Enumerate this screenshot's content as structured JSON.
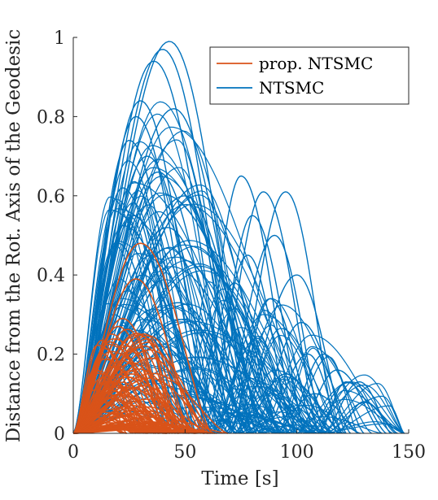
{
  "chart_data": {
    "type": "line",
    "xlabel": "Time [s]",
    "ylabel": "Distance from the Rot. Axis of the Geodesic",
    "xlim": [
      0,
      150
    ],
    "ylim": [
      0,
      1
    ],
    "xticks": [
      0,
      50,
      100,
      150
    ],
    "yticks": [
      0,
      0.2,
      0.4,
      0.6,
      0.8,
      1
    ],
    "xtick_labels": [
      "0",
      "50",
      "100",
      "150"
    ],
    "ytick_labels": [
      "0",
      "0.2",
      "0.4",
      "0.6",
      "0.8",
      "1"
    ],
    "grid": false,
    "legend_position": "top-right",
    "series": [
      {
        "name": "prop. NTSMC",
        "color": "#D95319",
        "description": "many trajectories; each a smooth bump starting at t≈0",
        "representative_peaks": [
          {
            "t": 30,
            "y": 0.48,
            "end": 62
          },
          {
            "t": 28,
            "y": 0.39,
            "end": 55
          },
          {
            "t": 22,
            "y": 0.29,
            "end": 45
          },
          {
            "t": 20,
            "y": 0.27,
            "end": 42
          },
          {
            "t": 24,
            "y": 0.22,
            "end": 48
          },
          {
            "t": 35,
            "y": 0.19,
            "end": 60
          },
          {
            "t": 18,
            "y": 0.17,
            "end": 38
          },
          {
            "t": 26,
            "y": 0.15,
            "end": 50
          },
          {
            "t": 16,
            "y": 0.13,
            "end": 35
          },
          {
            "t": 32,
            "y": 0.12,
            "end": 55
          },
          {
            "t": 21,
            "y": 0.1,
            "end": 44
          },
          {
            "t": 14,
            "y": 0.08,
            "end": 30
          },
          {
            "t": 27,
            "y": 0.07,
            "end": 46
          },
          {
            "t": 19,
            "y": 0.05,
            "end": 36
          },
          {
            "t": 12,
            "y": 0.04,
            "end": 28
          },
          {
            "t": 25,
            "y": 0.03,
            "end": 40
          },
          {
            "t": 10,
            "y": 0.02,
            "end": 24
          }
        ]
      },
      {
        "name": "NTSMC",
        "color": "#0072BD",
        "description": "many trajectories; first bump peaking between t≈20 and t≈50, some with second bumps later",
        "representative_peaks": [
          {
            "t": 43,
            "y": 0.99,
            "end": 80
          },
          {
            "t": 40,
            "y": 0.97,
            "end": 76
          },
          {
            "t": 36,
            "y": 0.94,
            "end": 72
          },
          {
            "t": 30,
            "y": 0.84,
            "end": 62
          },
          {
            "t": 28,
            "y": 0.8,
            "end": 60
          },
          {
            "t": 45,
            "y": 0.82,
            "end": 82
          },
          {
            "t": 25,
            "y": 0.74,
            "end": 55
          },
          {
            "t": 33,
            "y": 0.7,
            "end": 66
          },
          {
            "t": 38,
            "y": 0.66,
            "end": 72
          },
          {
            "t": 22,
            "y": 0.62,
            "end": 52
          },
          {
            "t": 50,
            "y": 0.6,
            "end": 86
          },
          {
            "t": 27,
            "y": 0.55,
            "end": 58
          },
          {
            "t": 42,
            "y": 0.52,
            "end": 78
          },
          {
            "t": 20,
            "y": 0.48,
            "end": 46
          },
          {
            "t": 35,
            "y": 0.45,
            "end": 68
          },
          {
            "t": 31,
            "y": 0.4,
            "end": 62
          },
          {
            "t": 24,
            "y": 0.36,
            "end": 54
          },
          {
            "t": 47,
            "y": 0.33,
            "end": 84
          },
          {
            "t": 18,
            "y": 0.3,
            "end": 42
          },
          {
            "t": 29,
            "y": 0.26,
            "end": 60
          },
          {
            "t": 39,
            "y": 0.22,
            "end": 70
          },
          {
            "t": 21,
            "y": 0.18,
            "end": 48
          }
        ],
        "second_bumps": [
          {
            "start": 55,
            "t": 75,
            "y": 0.65,
            "end": 100
          },
          {
            "start": 62,
            "t": 85,
            "y": 0.61,
            "end": 110
          },
          {
            "start": 70,
            "t": 95,
            "y": 0.61,
            "end": 118
          },
          {
            "start": 60,
            "t": 80,
            "y": 0.55,
            "end": 104
          },
          {
            "start": 65,
            "t": 90,
            "y": 0.5,
            "end": 112
          },
          {
            "start": 58,
            "t": 78,
            "y": 0.45,
            "end": 98
          },
          {
            "start": 72,
            "t": 100,
            "y": 0.4,
            "end": 122
          },
          {
            "start": 55,
            "t": 72,
            "y": 0.38,
            "end": 92
          },
          {
            "start": 68,
            "t": 88,
            "y": 0.34,
            "end": 108
          },
          {
            "start": 80,
            "t": 102,
            "y": 0.28,
            "end": 124
          },
          {
            "start": 62,
            "t": 82,
            "y": 0.24,
            "end": 100
          },
          {
            "start": 95,
            "t": 112,
            "y": 0.2,
            "end": 130
          },
          {
            "start": 100,
            "t": 118,
            "y": 0.16,
            "end": 138
          },
          {
            "start": 110,
            "t": 122,
            "y": 0.13,
            "end": 140
          },
          {
            "start": 112,
            "t": 128,
            "y": 0.13,
            "end": 142
          },
          {
            "start": 118,
            "t": 130,
            "y": 0.08,
            "end": 145
          },
          {
            "start": 85,
            "t": 105,
            "y": 0.2,
            "end": 120
          },
          {
            "start": 75,
            "t": 95,
            "y": 0.15,
            "end": 115
          },
          {
            "start": 90,
            "t": 108,
            "y": 0.1,
            "end": 128
          }
        ]
      }
    ]
  }
}
